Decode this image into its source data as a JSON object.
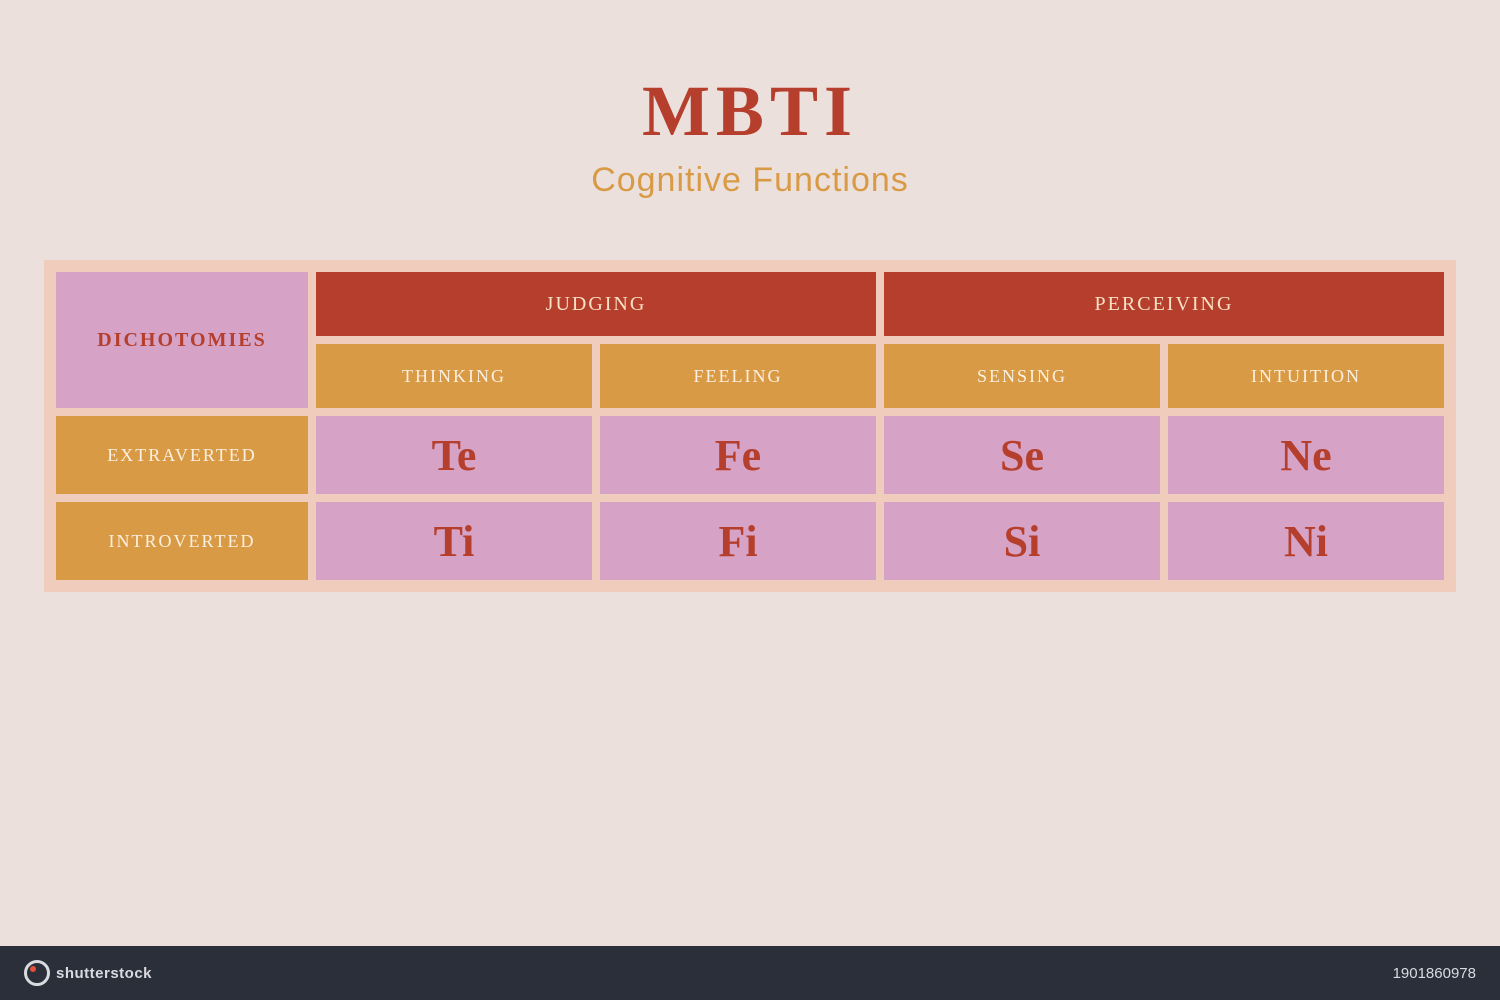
{
  "colors": {
    "page_bg": "#ece0dc",
    "table_border": "#f0ccbd",
    "corner_bg": "#d6a3c7",
    "corner_text": "#b53f2c",
    "top_header_bg": "#b53f2c",
    "top_header_text": "#f7e0c5",
    "sub_header_bg": "#d99a45",
    "sub_header_text": "#fbefdf",
    "row_label_bg": "#d99a45",
    "row_label_text": "#fbefdf",
    "cell_bg": "#d6a3c7",
    "cell_text": "#b53f2c",
    "title_color": "#b53f2c",
    "subtitle_color": "#d99a45",
    "footer_bg": "#2a2f3a",
    "footer_text": "#d9dbe0",
    "footer_logo_accent": "#e74c3c"
  },
  "typography": {
    "title_size": 72,
    "subtitle_size": 34,
    "corner_size": 20,
    "top_header_size": 20,
    "sub_header_size": 18,
    "row_label_size": 18,
    "cell_size": 44,
    "footer_size": 15
  },
  "header": {
    "title": "MBTI",
    "subtitle": "Cognitive Functions"
  },
  "table": {
    "corner_label": "DICHOTOMIES",
    "top_headers": [
      "JUDGING",
      "PERCEIVING"
    ],
    "sub_headers": [
      "THINKING",
      "FEELING",
      "SENSING",
      "INTUITION"
    ],
    "row_labels": [
      "EXTRAVERTED",
      "INTROVERTED"
    ],
    "rows": [
      [
        "Te",
        "Fe",
        "Se",
        "Ne"
      ],
      [
        "Ti",
        "Fi",
        "Si",
        "Ni"
      ]
    ]
  },
  "footer": {
    "brand": "shutterstock",
    "id": "1901860978"
  }
}
